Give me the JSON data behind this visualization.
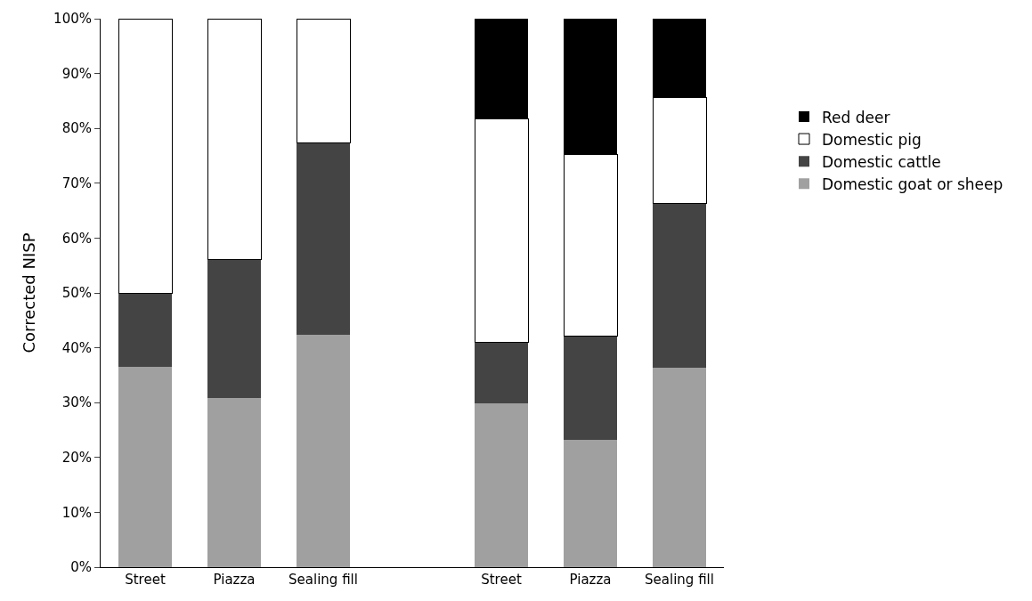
{
  "chart_data": {
    "type": "bar",
    "stacked": true,
    "ylabel": "Corrected NISP",
    "categories": [
      "Street",
      "Piazza",
      "Sealing fill",
      null,
      "Street",
      "Piazza",
      "Sealing fill"
    ],
    "series": [
      {
        "name": "Domestic goat or sheep",
        "color": "#a0a0a0",
        "values": [
          36.6,
          30.8,
          42.3,
          null,
          29.8,
          23.2,
          36.3
        ]
      },
      {
        "name": "Domestic cattle",
        "color": "#444444",
        "values": [
          13.4,
          25.3,
          35.1,
          null,
          11.2,
          18.9,
          30.0
        ]
      },
      {
        "name": "Domestic pig",
        "color": "#ffffff",
        "values": [
          50.0,
          43.9,
          22.6,
          null,
          40.8,
          33.1,
          19.3
        ]
      },
      {
        "name": "Red deer",
        "color": "#000000",
        "values": [
          null,
          null,
          null,
          null,
          18.2,
          24.8,
          14.4
        ]
      }
    ],
    "ylim": [
      0,
      100
    ],
    "yticks": [
      {
        "value": 0,
        "label": "0%"
      },
      {
        "value": 10,
        "label": "10%"
      },
      {
        "value": 20,
        "label": "20%"
      },
      {
        "value": 30,
        "label": "30%"
      },
      {
        "value": 40,
        "label": "40%"
      },
      {
        "value": 50,
        "label": "50%"
      },
      {
        "value": 60,
        "label": "60%"
      },
      {
        "value": 70,
        "label": "70%"
      },
      {
        "value": 80,
        "label": "80%"
      },
      {
        "value": 90,
        "label": "90%"
      },
      {
        "value": 100,
        "label": "100%"
      }
    ],
    "grid": false,
    "legend": "right"
  }
}
